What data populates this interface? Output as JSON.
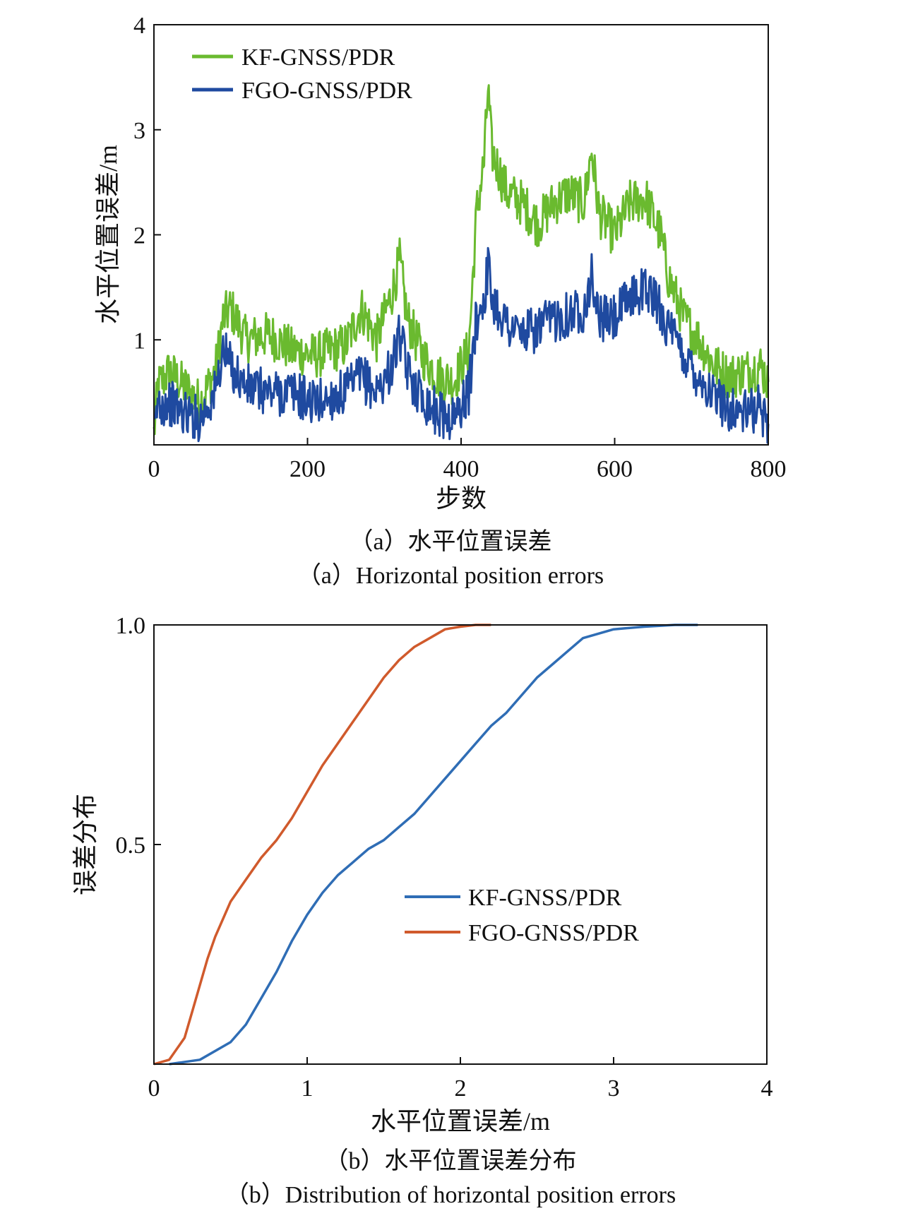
{
  "figure": {
    "caption_a_cn": "（a）水平位置误差",
    "caption_a_en": "（a）Horizontal position errors",
    "caption_b_cn": "（b）水平位置误差分布",
    "caption_b_en": "（b）Distribution of horizontal position errors"
  },
  "chart_data": [
    {
      "type": "line",
      "title": "",
      "xlabel": "步数",
      "ylabel": "水平位置误差/m",
      "xlim": [
        0,
        800
      ],
      "ylim": [
        0,
        4
      ],
      "xticks": [
        "0",
        "200",
        "400",
        "600",
        "800"
      ],
      "yticks": [
        "1",
        "2",
        "3",
        "4"
      ],
      "grid": false,
      "legend_position": "top-left",
      "series": [
        {
          "name": "KF-GNSS/PDR",
          "color": "#6aba2f",
          "x": [
            0,
            5,
            20,
            40,
            60,
            80,
            90,
            100,
            120,
            150,
            180,
            210,
            250,
            270,
            290,
            310,
            320,
            330,
            350,
            370,
            390,
            410,
            420,
            430,
            435,
            440,
            460,
            480,
            500,
            520,
            540,
            560,
            570,
            580,
            600,
            620,
            640,
            660,
            670,
            690,
            710,
            730,
            750,
            770,
            790,
            800
          ],
          "values": [
            0.1,
            0.55,
            0.7,
            0.55,
            0.4,
            0.7,
            1.2,
            1.3,
            1.0,
            1.05,
            0.9,
            0.85,
            0.95,
            1.3,
            1.0,
            1.45,
            1.75,
            1.2,
            0.85,
            0.65,
            0.6,
            0.9,
            2.2,
            2.7,
            3.4,
            2.8,
            2.4,
            2.3,
            2.1,
            2.3,
            2.4,
            2.3,
            2.8,
            2.2,
            2.0,
            2.3,
            2.35,
            2.0,
            1.6,
            1.2,
            1.0,
            0.75,
            0.65,
            0.7,
            0.75,
            0.6
          ]
        },
        {
          "name": "FGO-GNSS/PDR",
          "color": "#1f4aa0",
          "x": [
            0,
            5,
            20,
            40,
            60,
            80,
            90,
            100,
            120,
            150,
            180,
            210,
            250,
            270,
            290,
            310,
            320,
            330,
            350,
            370,
            390,
            410,
            420,
            430,
            435,
            440,
            460,
            480,
            500,
            520,
            540,
            560,
            570,
            580,
            600,
            620,
            640,
            660,
            670,
            690,
            710,
            730,
            750,
            770,
            790,
            800
          ],
          "values": [
            0.05,
            0.4,
            0.4,
            0.3,
            0.25,
            0.5,
            0.9,
            0.75,
            0.55,
            0.5,
            0.5,
            0.4,
            0.5,
            0.65,
            0.5,
            0.75,
            1.05,
            0.7,
            0.45,
            0.3,
            0.25,
            0.5,
            1.2,
            1.4,
            1.7,
            1.4,
            1.15,
            1.05,
            1.1,
            1.2,
            1.25,
            1.3,
            1.6,
            1.2,
            1.2,
            1.4,
            1.5,
            1.3,
            1.1,
            0.85,
            0.65,
            0.45,
            0.35,
            0.3,
            0.35,
            0.2
          ]
        }
      ]
    },
    {
      "type": "line",
      "title": "",
      "xlabel": "水平位置误差/m",
      "ylabel": "误差分布",
      "xlim": [
        0,
        4
      ],
      "ylim": [
        0,
        1.0
      ],
      "xticks": [
        "0",
        "1",
        "2",
        "3",
        "4"
      ],
      "yticks": [
        "0.5",
        "1.0"
      ],
      "grid": false,
      "legend_position": "center-right",
      "series": [
        {
          "name": "KF-GNSS/PDR",
          "color": "#2f6db5",
          "x": [
            0.1,
            0.3,
            0.5,
            0.6,
            0.7,
            0.8,
            0.9,
            1.0,
            1.1,
            1.2,
            1.3,
            1.4,
            1.5,
            1.6,
            1.7,
            1.8,
            1.9,
            2.0,
            2.1,
            2.2,
            2.3,
            2.4,
            2.5,
            2.6,
            2.7,
            2.8,
            2.9,
            3.0,
            3.2,
            3.4,
            3.55
          ],
          "values": [
            0.0,
            0.01,
            0.05,
            0.09,
            0.15,
            0.21,
            0.28,
            0.34,
            0.39,
            0.43,
            0.46,
            0.49,
            0.51,
            0.54,
            0.57,
            0.61,
            0.65,
            0.69,
            0.73,
            0.77,
            0.8,
            0.84,
            0.88,
            0.91,
            0.94,
            0.97,
            0.98,
            0.99,
            0.996,
            1.0,
            1.0
          ]
        },
        {
          "name": "FGO-GNSS/PDR",
          "color": "#d05a2c",
          "x": [
            0.0,
            0.1,
            0.2,
            0.25,
            0.3,
            0.35,
            0.4,
            0.5,
            0.6,
            0.7,
            0.8,
            0.9,
            1.0,
            1.1,
            1.2,
            1.3,
            1.4,
            1.5,
            1.6,
            1.7,
            1.8,
            1.9,
            2.0,
            2.1,
            2.2
          ],
          "values": [
            0.0,
            0.01,
            0.06,
            0.12,
            0.18,
            0.24,
            0.29,
            0.37,
            0.42,
            0.47,
            0.51,
            0.56,
            0.62,
            0.68,
            0.73,
            0.78,
            0.83,
            0.88,
            0.92,
            0.95,
            0.97,
            0.99,
            0.996,
            1.0,
            1.0
          ]
        }
      ]
    }
  ]
}
